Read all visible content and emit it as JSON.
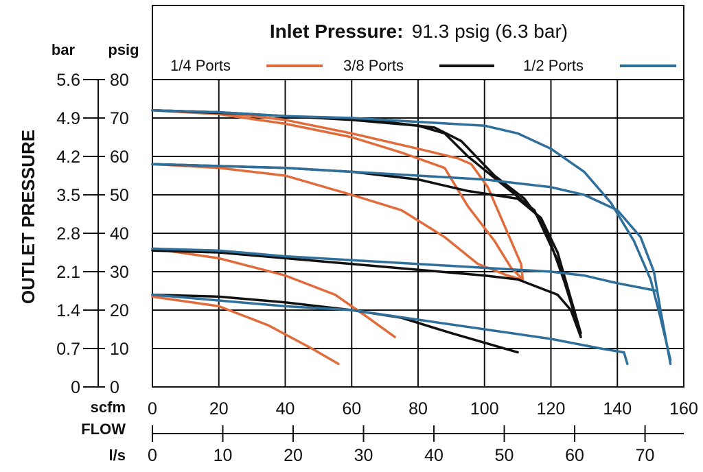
{
  "chart_data": {
    "type": "line",
    "title_label": "Inlet Pressure:",
    "title_value": "91.3 psig (6.3 bar)",
    "ylabel": "OUTLET PRESSURE",
    "xlabel": "FLOW",
    "y_unit_primary": "psig",
    "y_unit_secondary": "bar",
    "x_unit_primary": "scfm",
    "x_unit_secondary": "l/s",
    "xlim": [
      0,
      160
    ],
    "ylim": [
      0,
      80
    ],
    "xticks": [
      "0",
      "20",
      "40",
      "60",
      "80",
      "100",
      "120",
      "140",
      "160"
    ],
    "yticks": [
      "0",
      "10",
      "20",
      "30",
      "40",
      "50",
      "60",
      "70",
      "80"
    ],
    "bar_ticks": [
      "0",
      "0.7",
      "1.4",
      "2.1",
      "2.8",
      "3.5",
      "4.2",
      "4.9",
      "5.6"
    ],
    "ls_ticks": [
      "0",
      "10",
      "20",
      "30",
      "40",
      "50",
      "60",
      "70"
    ],
    "ls_values": [
      0,
      10,
      20,
      30,
      40,
      50,
      60,
      70
    ],
    "ls_per_scfm": 0.4719,
    "legend": [
      {
        "name": "1/4 Ports",
        "color": "#e06c3c"
      },
      {
        "name": "3/8 Ports",
        "color": "#111111"
      },
      {
        "name": "1/2 Ports",
        "color": "#2f6f9a"
      }
    ],
    "series": [
      {
        "name": "1/4 Ports set 70",
        "port": "1/4 Ports",
        "color": "#e06c3c",
        "points": [
          [
            0,
            72
          ],
          [
            20,
            71
          ],
          [
            40,
            68.5
          ],
          [
            60,
            65
          ],
          [
            75,
            61
          ],
          [
            88,
            57
          ],
          [
            95,
            47
          ],
          [
            103,
            38
          ],
          [
            108,
            31
          ],
          [
            111.5,
            28
          ],
          [
            111,
            32
          ],
          [
            107,
            40
          ],
          [
            101,
            52
          ],
          [
            96,
            58
          ],
          [
            92,
            59.5
          ],
          [
            80,
            62
          ],
          [
            60,
            66
          ],
          [
            40,
            69.5
          ],
          [
            20,
            71.5
          ],
          [
            0,
            72
          ]
        ]
      },
      {
        "name": "1/4 Ports set 58",
        "port": "1/4 Ports",
        "color": "#e06c3c",
        "points": [
          [
            0,
            58
          ],
          [
            20,
            57
          ],
          [
            40,
            55
          ],
          [
            60,
            50
          ],
          [
            75,
            46
          ],
          [
            88,
            39
          ],
          [
            98,
            32
          ],
          [
            107,
            29
          ],
          [
            111,
            28
          ]
        ]
      },
      {
        "name": "1/4 Ports set 36",
        "port": "1/4 Ports",
        "color": "#e06c3c",
        "points": [
          [
            0,
            36
          ],
          [
            20,
            33.5
          ],
          [
            40,
            29
          ],
          [
            55,
            24
          ],
          [
            65,
            18
          ],
          [
            73,
            13
          ]
        ]
      },
      {
        "name": "1/4 Ports set 24",
        "port": "1/4 Ports",
        "color": "#e06c3c",
        "points": [
          [
            0,
            23.5
          ],
          [
            20,
            21
          ],
          [
            35,
            16
          ],
          [
            48,
            10
          ],
          [
            56,
            6
          ]
        ]
      },
      {
        "name": "3/8 Ports set 70",
        "port": "3/8 Ports",
        "color": "#111111",
        "points": [
          [
            0,
            72
          ],
          [
            20,
            71.5
          ],
          [
            40,
            70.5
          ],
          [
            60,
            69.5
          ],
          [
            80,
            68
          ],
          [
            88,
            66
          ],
          [
            95,
            60
          ],
          [
            105,
            53
          ],
          [
            115,
            46
          ],
          [
            122,
            33
          ],
          [
            126,
            22
          ],
          [
            129,
            13
          ],
          [
            127,
            20
          ],
          [
            123,
            30
          ],
          [
            118,
            42
          ],
          [
            112,
            49
          ],
          [
            103,
            55
          ],
          [
            93,
            64
          ],
          [
            85,
            67.5
          ],
          [
            70,
            69
          ],
          [
            50,
            70
          ],
          [
            30,
            71
          ],
          [
            0,
            72
          ]
        ]
      },
      {
        "name": "3/8 Ports set 58",
        "port": "3/8 Ports",
        "color": "#111111",
        "points": [
          [
            0,
            58
          ],
          [
            20,
            57.5
          ],
          [
            40,
            57
          ],
          [
            60,
            56
          ],
          [
            80,
            54
          ],
          [
            95,
            51
          ],
          [
            110,
            49
          ],
          [
            117,
            44
          ],
          [
            122,
            35
          ],
          [
            126,
            23
          ],
          [
            129,
            14
          ]
        ]
      },
      {
        "name": "3/8 Ports set 36",
        "port": "3/8 Ports",
        "color": "#111111",
        "points": [
          [
            0,
            35.5
          ],
          [
            20,
            35
          ],
          [
            40,
            33.5
          ],
          [
            60,
            32
          ],
          [
            80,
            30.5
          ],
          [
            100,
            29
          ],
          [
            110,
            28
          ],
          [
            122,
            24
          ],
          [
            126,
            20
          ],
          [
            129,
            13
          ]
        ]
      },
      {
        "name": "3/8 Ports set 24",
        "port": "3/8 Ports",
        "color": "#111111",
        "points": [
          [
            0,
            24
          ],
          [
            20,
            23.5
          ],
          [
            40,
            22
          ],
          [
            60,
            20
          ],
          [
            75,
            18
          ],
          [
            90,
            14
          ],
          [
            100,
            11.5
          ],
          [
            110,
            9
          ]
        ]
      },
      {
        "name": "1/2 Ports set 70",
        "port": "1/2 Ports",
        "color": "#2f6f9a",
        "points": [
          [
            0,
            72
          ],
          [
            20,
            71.5
          ],
          [
            40,
            70.5
          ],
          [
            60,
            70
          ],
          [
            80,
            69
          ],
          [
            100,
            68
          ],
          [
            110,
            66
          ],
          [
            120,
            62
          ],
          [
            130,
            56
          ],
          [
            138,
            48
          ],
          [
            145,
            38
          ],
          [
            150,
            28
          ],
          [
            153,
            18
          ],
          [
            156,
            7
          ]
        ]
      },
      {
        "name": "1/2 Ports set 58",
        "port": "1/2 Ports",
        "color": "#2f6f9a",
        "points": [
          [
            0,
            58
          ],
          [
            20,
            57.5
          ],
          [
            40,
            57
          ],
          [
            60,
            56
          ],
          [
            80,
            55
          ],
          [
            100,
            54
          ],
          [
            120,
            52
          ],
          [
            130,
            50
          ],
          [
            140,
            46
          ],
          [
            147,
            39
          ],
          [
            151,
            30
          ],
          [
            153,
            20
          ],
          [
            156,
            6
          ]
        ]
      },
      {
        "name": "1/2 Ports set 36",
        "port": "1/2 Ports",
        "color": "#2f6f9a",
        "points": [
          [
            0,
            36
          ],
          [
            20,
            35.5
          ],
          [
            40,
            34
          ],
          [
            60,
            33
          ],
          [
            80,
            32
          ],
          [
            100,
            31
          ],
          [
            120,
            30
          ],
          [
            130,
            29
          ],
          [
            140,
            27
          ],
          [
            152,
            25
          ]
        ]
      },
      {
        "name": "1/2 Ports set 24",
        "port": "1/2 Ports",
        "color": "#2f6f9a",
        "points": [
          [
            0,
            24
          ],
          [
            20,
            22.5
          ],
          [
            40,
            21
          ],
          [
            60,
            20
          ],
          [
            80,
            17.5
          ],
          [
            100,
            15
          ],
          [
            120,
            12.5
          ],
          [
            135,
            10
          ],
          [
            142,
            9
          ],
          [
            143,
            6
          ]
        ]
      }
    ]
  }
}
